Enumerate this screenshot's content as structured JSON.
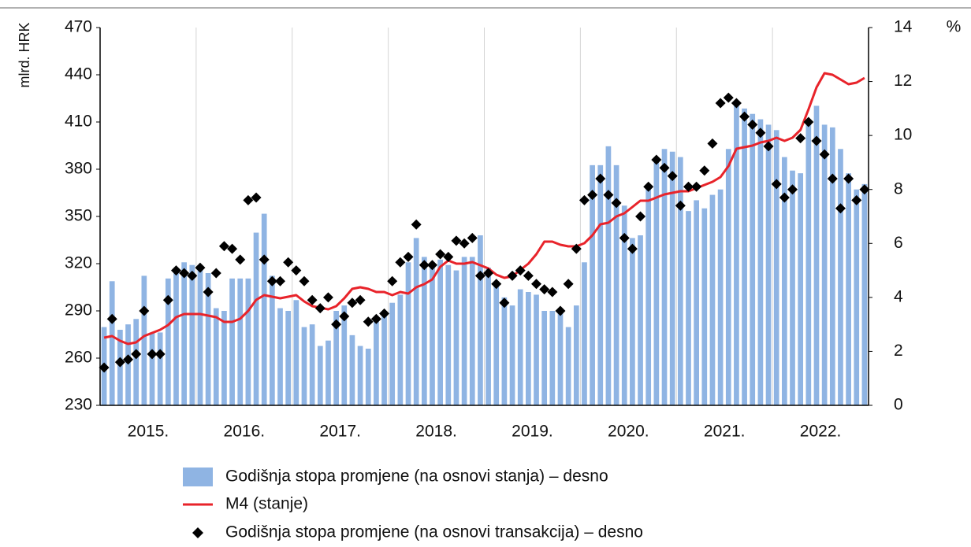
{
  "chart_data": {
    "type": "bar-line-scatter",
    "ylabel": "mlrd. HRK",
    "y2label": "%",
    "categories": [
      null,
      null,
      null,
      null,
      null,
      null,
      "2015.",
      null,
      null,
      null,
      null,
      null,
      null,
      null,
      null,
      null,
      null,
      null,
      "2016.",
      null,
      null,
      null,
      null,
      null,
      null,
      null,
      null,
      null,
      null,
      null,
      "2017.",
      null,
      null,
      null,
      null,
      null,
      null,
      null,
      null,
      null,
      null,
      null,
      "2018.",
      null,
      null,
      null,
      null,
      null,
      null,
      null,
      null,
      null,
      null,
      null,
      "2019.",
      null,
      null,
      null,
      null,
      null,
      null,
      null,
      null,
      null,
      null,
      null,
      "2020.",
      null,
      null,
      null,
      null,
      null,
      null,
      null,
      null,
      null,
      null,
      null,
      "2021.",
      null,
      null,
      null,
      null,
      null,
      null,
      null,
      null,
      null,
      null,
      null,
      "2022.",
      null,
      null,
      null,
      null,
      null
    ],
    "ylim": [
      230,
      470
    ],
    "yticks": [
      230,
      260,
      290,
      320,
      350,
      380,
      410,
      440,
      470
    ],
    "y2lim": [
      0,
      14
    ],
    "y2ticks": [
      0,
      2,
      4,
      6,
      8,
      10,
      12,
      14
    ],
    "series": [
      {
        "name": "Godišnja stopa promjene (na osnovi stanja) – desno",
        "kind": "bar",
        "axis": "y2",
        "color": "#8fb4e3",
        "values": [
          2.9,
          4.6,
          2.8,
          3.0,
          3.2,
          4.8,
          2.7,
          2.7,
          4.7,
          5.0,
          5.3,
          5.2,
          5.2,
          4.9,
          3.6,
          3.5,
          4.7,
          4.7,
          4.7,
          6.4,
          7.1,
          4.8,
          3.6,
          3.5,
          3.9,
          2.9,
          3.0,
          2.2,
          2.4,
          3.5,
          3.7,
          2.6,
          2.2,
          2.1,
          3.3,
          3.5,
          3.8,
          4.1,
          5.3,
          6.2,
          5.5,
          5.2,
          5.4,
          5.2,
          5.0,
          5.5,
          5.5,
          6.3,
          5.1,
          4.5,
          4.0,
          3.7,
          4.3,
          4.2,
          4.1,
          3.5,
          3.5,
          3.5,
          2.9,
          3.7,
          5.3,
          8.9,
          8.9,
          9.6,
          8.9,
          7.4,
          6.2,
          6.3,
          8.0,
          9.1,
          9.5,
          9.4,
          9.2,
          7.2,
          7.6,
          7.3,
          7.8,
          8.0,
          9.5,
          11.1,
          11.0,
          10.8,
          10.6,
          10.4,
          10.2,
          9.2,
          8.7,
          8.6,
          10.5,
          11.1,
          10.4,
          10.3,
          9.5,
          8.6,
          8.0,
          8.2
        ]
      },
      {
        "name": "M4 (stanje)",
        "kind": "line",
        "color": "#e8232a",
        "values": [
          273,
          274,
          271,
          269,
          270,
          274,
          276,
          278,
          281,
          286,
          288,
          288,
          288,
          287,
          286,
          283,
          283,
          285,
          290,
          297,
          300,
          299,
          298,
          299,
          300,
          296,
          293,
          292,
          291,
          293,
          298,
          304,
          305,
          304,
          302,
          302,
          300,
          302,
          301,
          305,
          307,
          310,
          318,
          322,
          320,
          320,
          321,
          319,
          317,
          313,
          311,
          312,
          316,
          320,
          326,
          334,
          334,
          332,
          331,
          331,
          333,
          338,
          345,
          346,
          350,
          352,
          356,
          360,
          360,
          362,
          364,
          365,
          366,
          366,
          368,
          370,
          372,
          375,
          382,
          393,
          394,
          395,
          397,
          398,
          400,
          398,
          400,
          405,
          418,
          432,
          441,
          440,
          437,
          434,
          435,
          438
        ]
      },
      {
        "name": "Godišnja stopa promjene (na osnovi transakcija) – desno",
        "kind": "scatter",
        "axis": "y2",
        "color": "#000000",
        "values": [
          1.4,
          3.2,
          1.6,
          1.7,
          1.9,
          3.5,
          1.9,
          1.9,
          3.9,
          5.0,
          4.9,
          4.8,
          5.1,
          4.2,
          4.9,
          5.9,
          5.8,
          5.4,
          7.6,
          7.7,
          5.4,
          4.6,
          4.6,
          5.3,
          5.0,
          4.6,
          3.9,
          3.6,
          4.0,
          3.0,
          3.3,
          3.8,
          3.9,
          3.1,
          3.2,
          3.4,
          4.6,
          5.3,
          5.5,
          6.7,
          5.2,
          5.2,
          5.6,
          5.5,
          6.1,
          6.0,
          6.2,
          4.8,
          4.9,
          4.5,
          3.8,
          4.8,
          5.0,
          4.8,
          4.5,
          4.3,
          4.2,
          3.5,
          4.5,
          5.8,
          7.6,
          7.8,
          8.4,
          7.8,
          7.5,
          6.2,
          5.8,
          7.0,
          8.1,
          9.1,
          8.8,
          8.5,
          7.4,
          8.1,
          8.1,
          8.7,
          9.7,
          11.2,
          11.4,
          11.2,
          10.7,
          10.4,
          10.1,
          9.6,
          8.2,
          7.7,
          8.0,
          9.9,
          10.5,
          9.8,
          9.3,
          8.4,
          7.3,
          8.4,
          7.6,
          8.0
        ]
      }
    ]
  }
}
